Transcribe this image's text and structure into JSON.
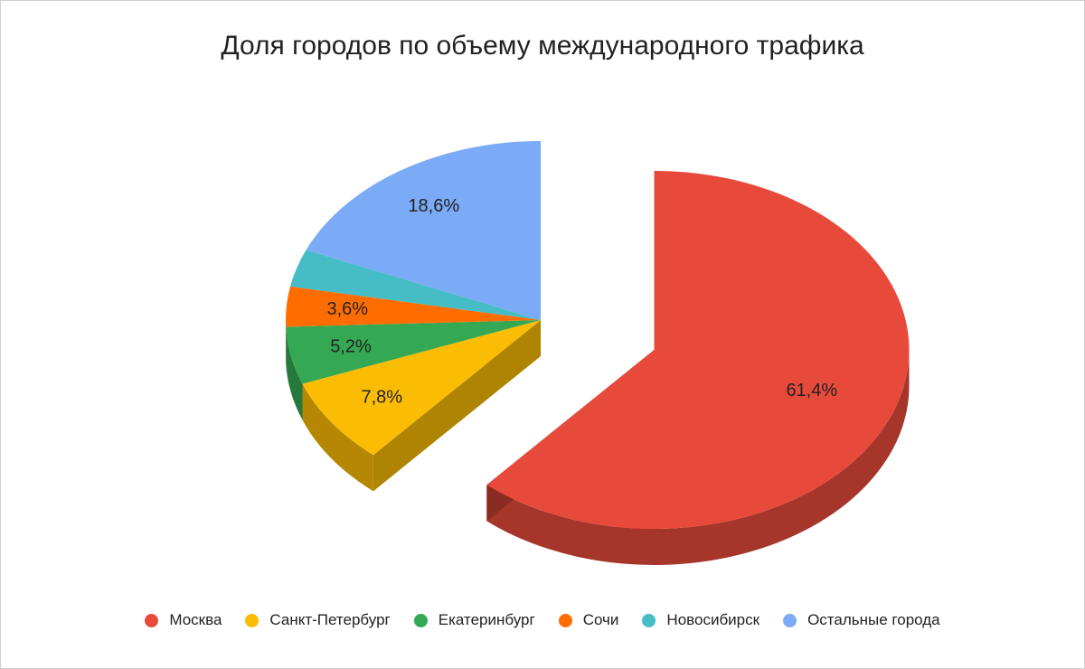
{
  "chart_data": {
    "type": "pie",
    "title": "Доля городов по объему международного трафика",
    "labels": [
      "Москва",
      "Санкт-Петербург",
      "Екатеринбург",
      "Сочи",
      "Новосибирск",
      "Остальные города"
    ],
    "values": [
      61.4,
      7.8,
      5.2,
      3.6,
      3.4,
      18.6
    ],
    "value_labels": [
      "61,4%",
      "7,8%",
      "5,2%",
      "3,6%",
      "",
      "18,6%"
    ],
    "colors": [
      "#e74a3b",
      "#fbbc04",
      "#34a853",
      "#ff6d01",
      "#46bdc6",
      "#7baaf7"
    ],
    "exploded": "Москва",
    "style": "3d",
    "legend_position": "bottom"
  }
}
